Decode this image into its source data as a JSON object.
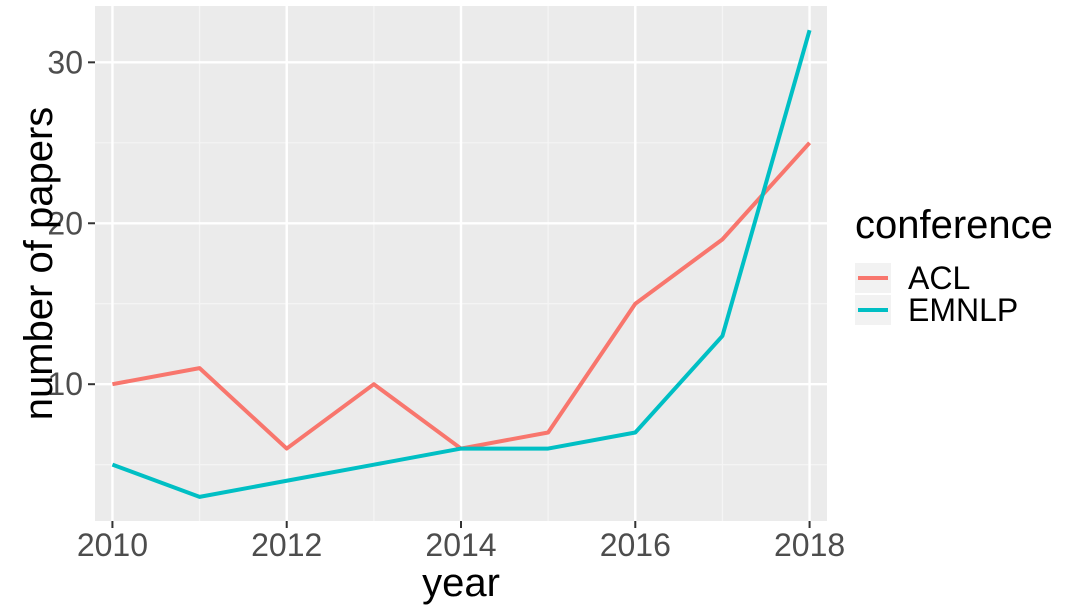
{
  "chart_data": {
    "type": "line",
    "xlabel": "year",
    "ylabel": "number of papers",
    "x": [
      2010,
      2011,
      2012,
      2013,
      2014,
      2015,
      2016,
      2017,
      2018
    ],
    "xticks": [
      "2010",
      "2012",
      "2014",
      "2016",
      "2018"
    ],
    "yticks": [
      "10",
      "20",
      "30"
    ],
    "xlim": [
      2009.8,
      2018.2
    ],
    "ylim": [
      1.5,
      33.5
    ],
    "grid": true,
    "legend": {
      "title": "conference",
      "position": "right"
    },
    "series": [
      {
        "name": "ACL",
        "color": "#F8766D",
        "values": [
          10,
          11,
          6,
          10,
          6,
          7,
          15,
          19,
          25
        ]
      },
      {
        "name": "EMNLP",
        "color": "#00BFC4",
        "values": [
          5,
          3,
          4,
          5,
          6,
          6,
          7,
          13,
          32
        ]
      }
    ]
  }
}
